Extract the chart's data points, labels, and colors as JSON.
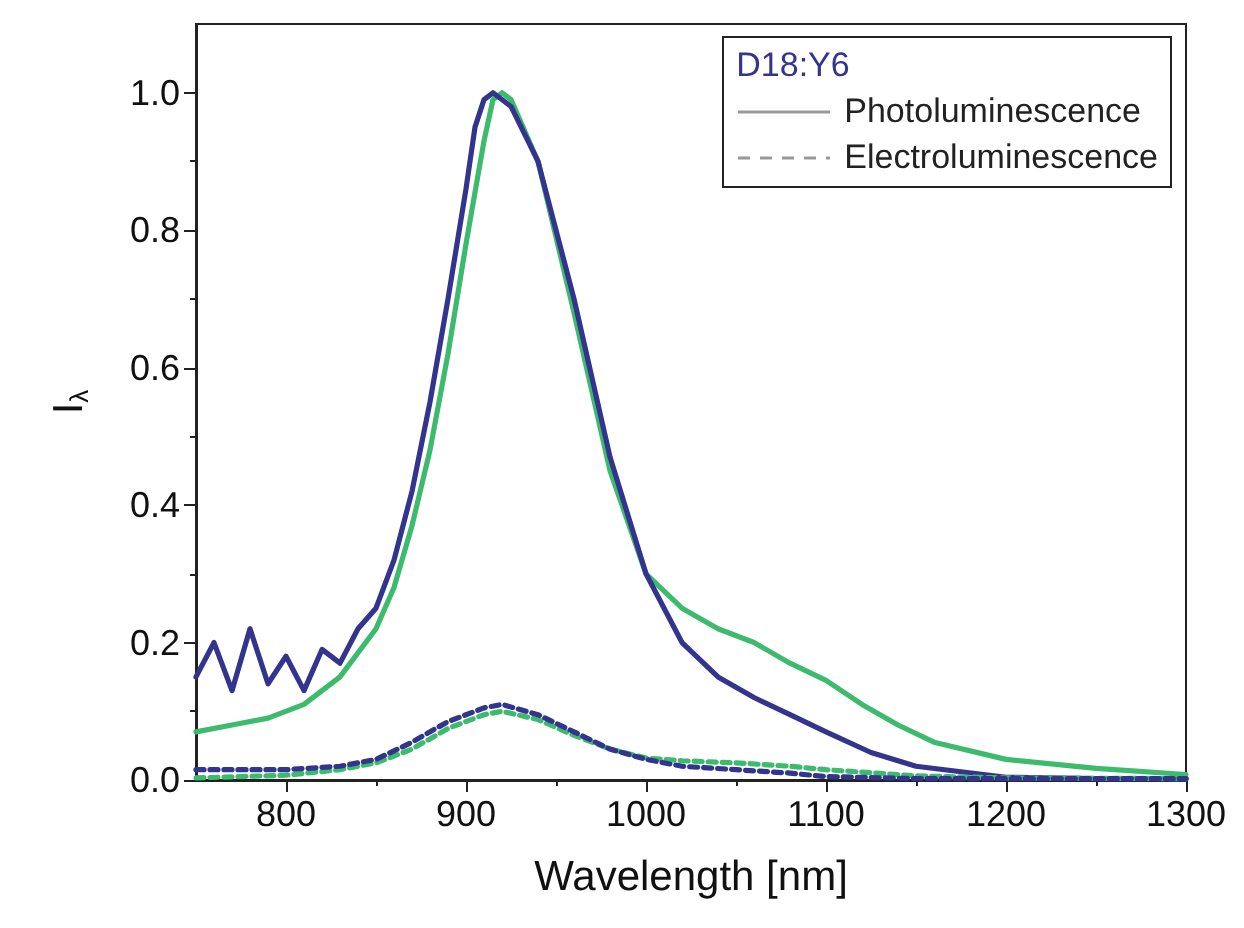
{
  "chart_data": {
    "type": "line",
    "xlabel": "Wavelength [nm]",
    "ylabel": "I$_{λ}$",
    "xlim": [
      750,
      1300
    ],
    "xticks": [
      800,
      900,
      1000,
      1100,
      1200,
      1300
    ],
    "ylim": [
      0,
      1.1
    ],
    "yticks": [
      {
        "value": 0,
        "label": "0.0"
      },
      {
        "value": 0.2,
        "label": "0.2"
      },
      {
        "value": 0.4,
        "label": "0.4"
      },
      {
        "value": 0.6,
        "label": "0.6"
      },
      {
        "value": 0.8,
        "label": "0.8"
      },
      {
        "value": 1.0,
        "label": "1.0"
      }
    ],
    "grid": false,
    "marker": "none",
    "annotations": [
      "D18:Y6",
      "Photoluminescence",
      "Electroluminescence"
    ],
    "series": [
      {
        "color": "#3dbb6c",
        "line_style": "solid",
        "x": [
          750,
          770,
          790,
          810,
          830,
          850,
          860,
          870,
          880,
          890,
          900,
          910,
          915,
          920,
          925,
          940,
          960,
          980,
          1000,
          1020,
          1040,
          1060,
          1080,
          1100,
          1120,
          1140,
          1160,
          1200,
          1250,
          1300
        ],
        "values": [
          0.07,
          0.08,
          0.09,
          0.11,
          0.15,
          0.22,
          0.28,
          0.37,
          0.48,
          0.62,
          0.78,
          0.93,
          0.99,
          1.0,
          0.99,
          0.9,
          0.68,
          0.45,
          0.3,
          0.25,
          0.22,
          0.2,
          0.17,
          0.145,
          0.11,
          0.08,
          0.055,
          0.03,
          0.017,
          0.008
        ]
      },
      {
        "color": "#33348e",
        "line_style": "solid",
        "x": [
          750,
          760,
          770,
          780,
          790,
          800,
          810,
          820,
          830,
          840,
          850,
          860,
          870,
          880,
          890,
          900,
          905,
          910,
          915,
          925,
          940,
          960,
          980,
          1000,
          1020,
          1040,
          1060,
          1080,
          1100,
          1125,
          1150,
          1200,
          1250,
          1300
        ],
        "values": [
          0.15,
          0.2,
          0.13,
          0.22,
          0.14,
          0.18,
          0.13,
          0.19,
          0.17,
          0.22,
          0.25,
          0.32,
          0.42,
          0.55,
          0.7,
          0.86,
          0.95,
          0.99,
          1.0,
          0.98,
          0.9,
          0.7,
          0.47,
          0.3,
          0.2,
          0.15,
          0.12,
          0.095,
          0.07,
          0.04,
          0.02,
          0.004,
          0.002,
          0.002
        ]
      },
      {
        "color": "#3dbb6c",
        "line_style": "dashed",
        "x": [
          750,
          800,
          830,
          850,
          870,
          890,
          910,
          920,
          940,
          960,
          980,
          1000,
          1020,
          1050,
          1080,
          1100,
          1150,
          1200,
          1300
        ],
        "values": [
          0.003,
          0.007,
          0.015,
          0.025,
          0.045,
          0.075,
          0.095,
          0.1,
          0.088,
          0.065,
          0.045,
          0.032,
          0.028,
          0.025,
          0.02,
          0.015,
          0.006,
          0.003,
          0.002
        ]
      },
      {
        "color": "#33348e",
        "line_style": "dashed",
        "x": [
          750,
          800,
          830,
          850,
          870,
          890,
          910,
          920,
          940,
          960,
          980,
          1000,
          1020,
          1050,
          1080,
          1100,
          1150,
          1300
        ],
        "values": [
          0.015,
          0.015,
          0.02,
          0.03,
          0.055,
          0.085,
          0.105,
          0.11,
          0.095,
          0.07,
          0.045,
          0.03,
          0.02,
          0.015,
          0.01,
          0.005,
          0.002,
          0.002
        ]
      }
    ]
  }
}
